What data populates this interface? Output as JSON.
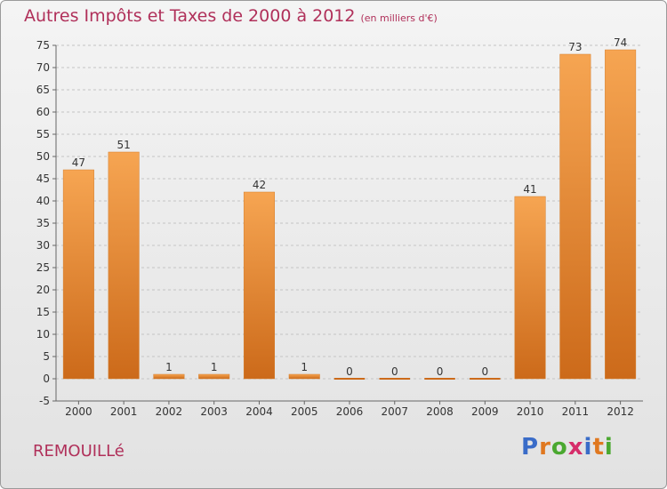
{
  "header": {
    "title": "Autres Impôts et Taxes de 2000 à 2012",
    "unit": "(en milliers d'€)"
  },
  "footer": {
    "commune": "REMOUILLé",
    "brand_letters": [
      "P",
      "r",
      "o",
      "x",
      "i",
      "t",
      "i"
    ],
    "brand_colors": [
      "#3a6cc8",
      "#e07820",
      "#4aa830",
      "#d62d6a",
      "#3a6cc8",
      "#e07820",
      "#4aa830"
    ]
  },
  "colors": {
    "bar_light": "#f6a552",
    "bar_dark": "#cc6a1a",
    "title": "#b0305a"
  },
  "chart_data": {
    "type": "bar",
    "categories": [
      "2000",
      "2001",
      "2002",
      "2003",
      "2004",
      "2005",
      "2006",
      "2007",
      "2008",
      "2009",
      "2010",
      "2011",
      "2012"
    ],
    "values": [
      47,
      51,
      1,
      1,
      42,
      1,
      0,
      0,
      0,
      0,
      41,
      73,
      74
    ],
    "value_labels": [
      "47",
      "51",
      "1",
      "1",
      "42",
      "1",
      "0",
      "0",
      "0",
      "0",
      "41",
      "73",
      "74"
    ],
    "ylim": [
      -5,
      75
    ],
    "yticks": [
      -5,
      0,
      5,
      10,
      15,
      20,
      25,
      30,
      35,
      40,
      45,
      50,
      55,
      60,
      65,
      70,
      75
    ],
    "grid": "horizontal dashed",
    "xlabel": "",
    "ylabel": ""
  }
}
